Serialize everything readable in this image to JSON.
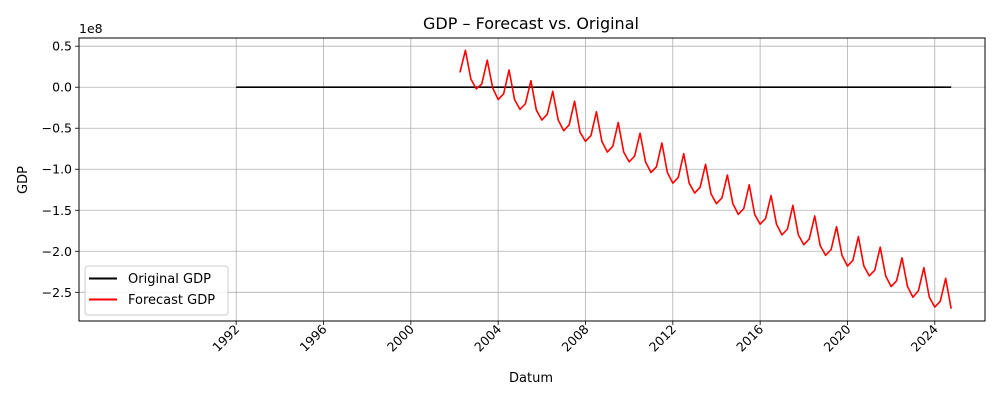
{
  "chart_data": {
    "type": "line",
    "title": "GDP – Forecast vs. Original",
    "xlabel": "Datum",
    "ylabel": "GDP",
    "y_offset_label": "1e8",
    "xlim": [
      1984.8,
      2026.3
    ],
    "ylim": [
      -2.85,
      0.6
    ],
    "y_scale_factor": 100000000,
    "x_ticks": [
      1992,
      1996,
      2000,
      2004,
      2008,
      2012,
      2016,
      2020,
      2024
    ],
    "x_tick_labels": [
      "1992",
      "1996",
      "2000",
      "2004",
      "2008",
      "2012",
      "2016",
      "2020",
      "2024"
    ],
    "y_ticks": [
      0.5,
      0.0,
      -0.5,
      -1.0,
      -1.5,
      -2.0,
      -2.5
    ],
    "y_tick_labels": [
      "0.5",
      "0.0",
      "−0.5",
      "−1.0",
      "−1.5",
      "−2.0",
      "−2.5"
    ],
    "grid": true,
    "legend_position": "lower-left",
    "series": [
      {
        "name": "Original GDP",
        "color": "#000000",
        "x": [
          1992.0,
          2024.75
        ],
        "y": [
          0.0,
          0.0
        ]
      },
      {
        "name": "Forecast GDP",
        "color": "#ff0000",
        "x": [
          2002.25,
          2002.5,
          2002.75,
          2003.0,
          2003.25,
          2003.5,
          2003.75,
          2004.0,
          2004.25,
          2004.5,
          2004.75,
          2005.0,
          2005.25,
          2005.5,
          2005.75,
          2006.0,
          2006.25,
          2006.5,
          2006.75,
          2007.0,
          2007.25,
          2007.5,
          2007.75,
          2008.0,
          2008.25,
          2008.5,
          2008.75,
          2009.0,
          2009.25,
          2009.5,
          2009.75,
          2010.0,
          2010.25,
          2010.5,
          2010.75,
          2011.0,
          2011.25,
          2011.5,
          2011.75,
          2012.0,
          2012.25,
          2012.5,
          2012.75,
          2013.0,
          2013.25,
          2013.5,
          2013.75,
          2014.0,
          2014.25,
          2014.5,
          2014.75,
          2015.0,
          2015.25,
          2015.5,
          2015.75,
          2016.0,
          2016.25,
          2016.5,
          2016.75,
          2017.0,
          2017.25,
          2017.5,
          2017.75,
          2018.0,
          2018.25,
          2018.5,
          2018.75,
          2019.0,
          2019.25,
          2019.5,
          2019.75,
          2020.0,
          2020.25,
          2020.5,
          2020.75,
          2021.0,
          2021.25,
          2021.5,
          2021.75,
          2022.0,
          2022.25,
          2022.5,
          2022.75,
          2023.0,
          2023.25,
          2023.5,
          2023.75,
          2024.0,
          2024.25,
          2024.5,
          2024.75
        ],
        "y": [
          0.18,
          0.45,
          0.1,
          -0.02,
          0.04,
          0.33,
          -0.01,
          -0.15,
          -0.08,
          0.21,
          -0.15,
          -0.27,
          -0.2,
          0.08,
          -0.28,
          -0.4,
          -0.33,
          -0.05,
          -0.4,
          -0.53,
          -0.46,
          -0.17,
          -0.55,
          -0.66,
          -0.59,
          -0.3,
          -0.66,
          -0.79,
          -0.72,
          -0.43,
          -0.79,
          -0.91,
          -0.84,
          -0.56,
          -0.91,
          -1.04,
          -0.97,
          -0.68,
          -1.04,
          -1.17,
          -1.1,
          -0.81,
          -1.17,
          -1.29,
          -1.22,
          -0.94,
          -1.3,
          -1.42,
          -1.35,
          -1.07,
          -1.42,
          -1.55,
          -1.48,
          -1.19,
          -1.55,
          -1.67,
          -1.6,
          -1.32,
          -1.67,
          -1.8,
          -1.73,
          -1.44,
          -1.8,
          -1.92,
          -1.85,
          -1.57,
          -1.93,
          -2.05,
          -1.98,
          -1.7,
          -2.05,
          -2.18,
          -2.11,
          -1.82,
          -2.18,
          -2.3,
          -2.23,
          -1.95,
          -2.3,
          -2.43,
          -2.36,
          -2.08,
          -2.43,
          -2.56,
          -2.48,
          -2.2,
          -2.56,
          -2.68,
          -2.61,
          -2.33,
          -2.7
        ]
      }
    ]
  }
}
